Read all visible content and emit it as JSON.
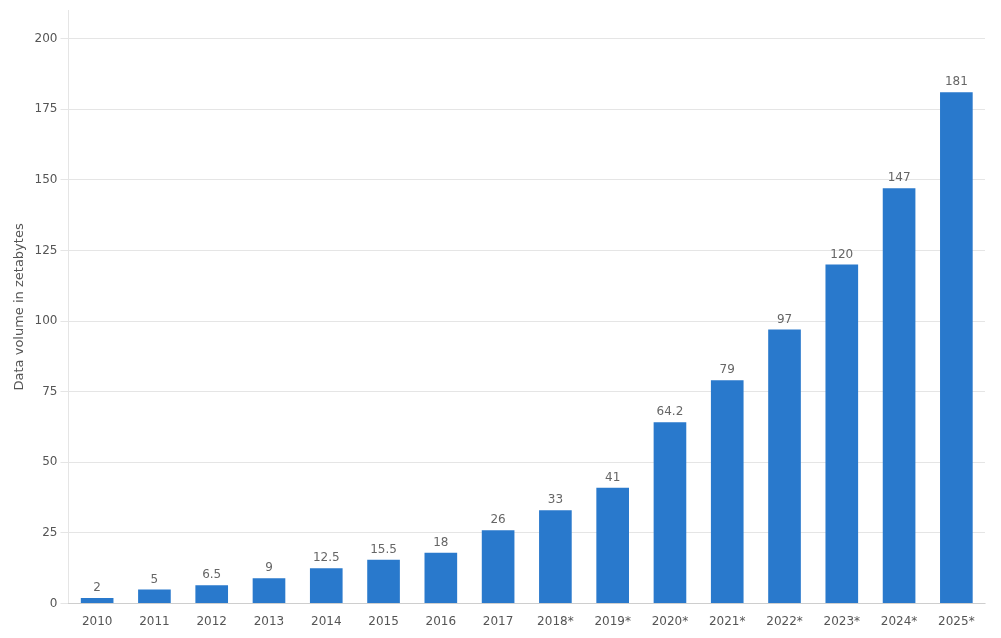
{
  "chart_data": {
    "type": "bar",
    "ylabel": "Data volume in zetabytes",
    "categories": [
      "2010",
      "2011",
      "2012",
      "2013",
      "2014",
      "2015",
      "2016",
      "2017",
      "2018*",
      "2019*",
      "2020*",
      "2021*",
      "2022*",
      "2023*",
      "2024*",
      "2025*"
    ],
    "values": [
      2,
      5,
      6.5,
      9,
      12.5,
      15.5,
      18,
      26,
      33,
      41,
      64.2,
      79,
      97,
      120,
      147,
      181
    ],
    "color": "#2979CC",
    "ylim": [
      0,
      210
    ],
    "yticks": [
      0,
      25,
      50,
      75,
      100,
      125,
      150,
      175,
      200
    ],
    "grid": true,
    "data_labels": true
  }
}
